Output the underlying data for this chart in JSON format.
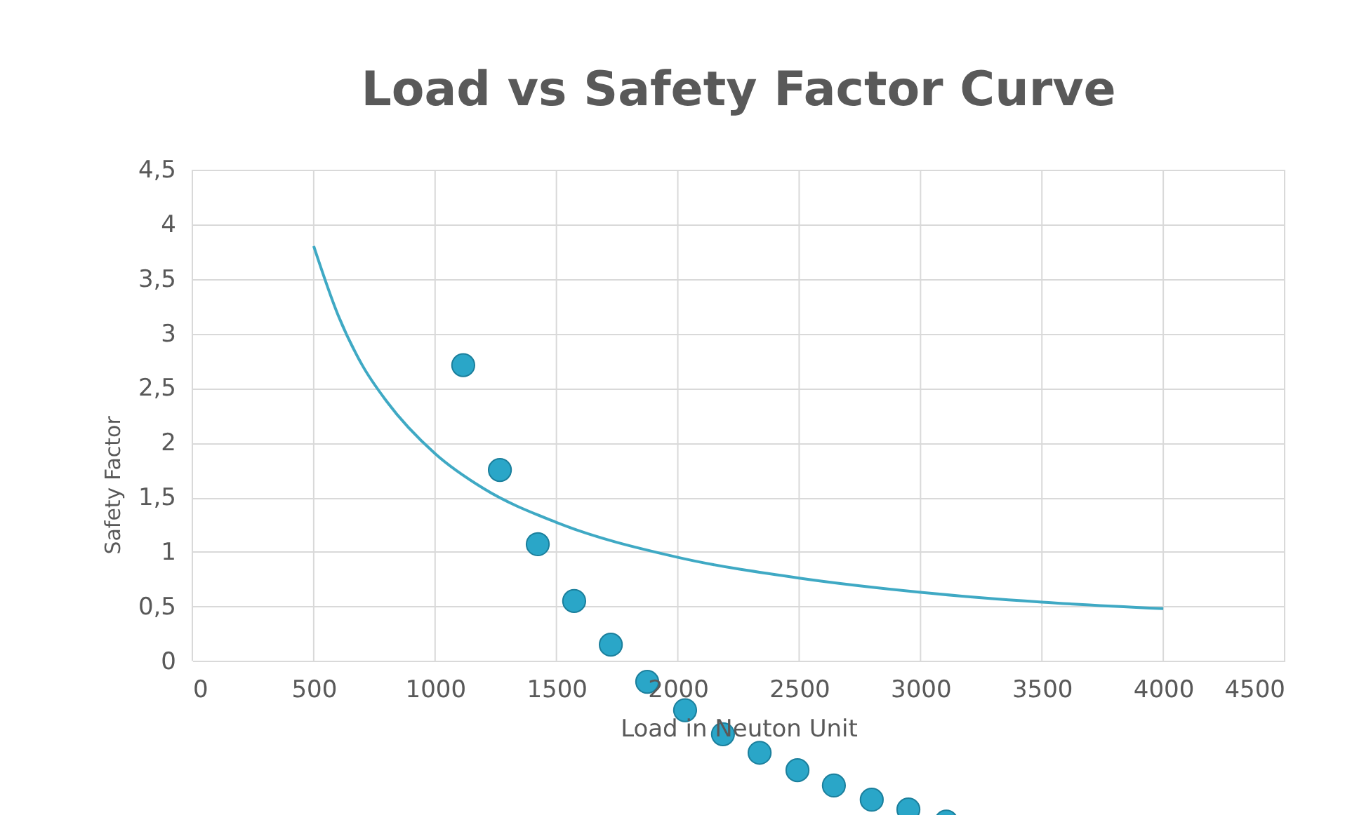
{
  "chart_data": {
    "type": "scatter",
    "title": "Load vs Safety Factor Curve",
    "xlabel": "Load in Neuton Unit",
    "ylabel": "Safety Factor",
    "series": [
      {
        "marker": "circle",
        "color": "#2aa6c8",
        "x": [
          1116,
          1267,
          1423,
          1573,
          1724,
          1874,
          2030,
          2186,
          2337,
          2493,
          2643,
          2799,
          2950,
          3106
        ],
        "values": [
          2.71,
          1.75,
          1.07,
          0.55,
          0.15,
          -0.19,
          -0.45,
          -0.67,
          -0.84,
          -1.0,
          -1.14,
          -1.27,
          -1.36,
          -1.47
        ]
      },
      {
        "type": "line",
        "marker": "none",
        "color": "#3fa9c4",
        "x": [
          500,
          600,
          700,
          800,
          1000,
          1200,
          1500,
          2000,
          2500,
          3000,
          3500,
          4000
        ],
        "values": [
          3.8,
          3.17,
          2.71,
          2.38,
          1.9,
          1.58,
          1.27,
          0.95,
          0.76,
          0.63,
          0.54,
          0.48
        ]
      }
    ],
    "xlim": [
      0,
      4500
    ],
    "xticks": [
      0,
      500,
      1000,
      1500,
      2000,
      2500,
      3000,
      3500,
      4000,
      4500
    ],
    "ylim": [
      -1.5,
      4.5
    ],
    "yticks": [
      0,
      {
        "value": 0.5,
        "label": "0,5"
      },
      1,
      {
        "value": 1.5,
        "label": "1,5"
      },
      2,
      {
        "value": 2.5,
        "label": "2,5"
      },
      3,
      {
        "value": 3.5,
        "label": "3,5"
      },
      4,
      {
        "value": 4.5,
        "label": "4,5"
      }
    ],
    "grid": true,
    "line_style": "solid"
  }
}
